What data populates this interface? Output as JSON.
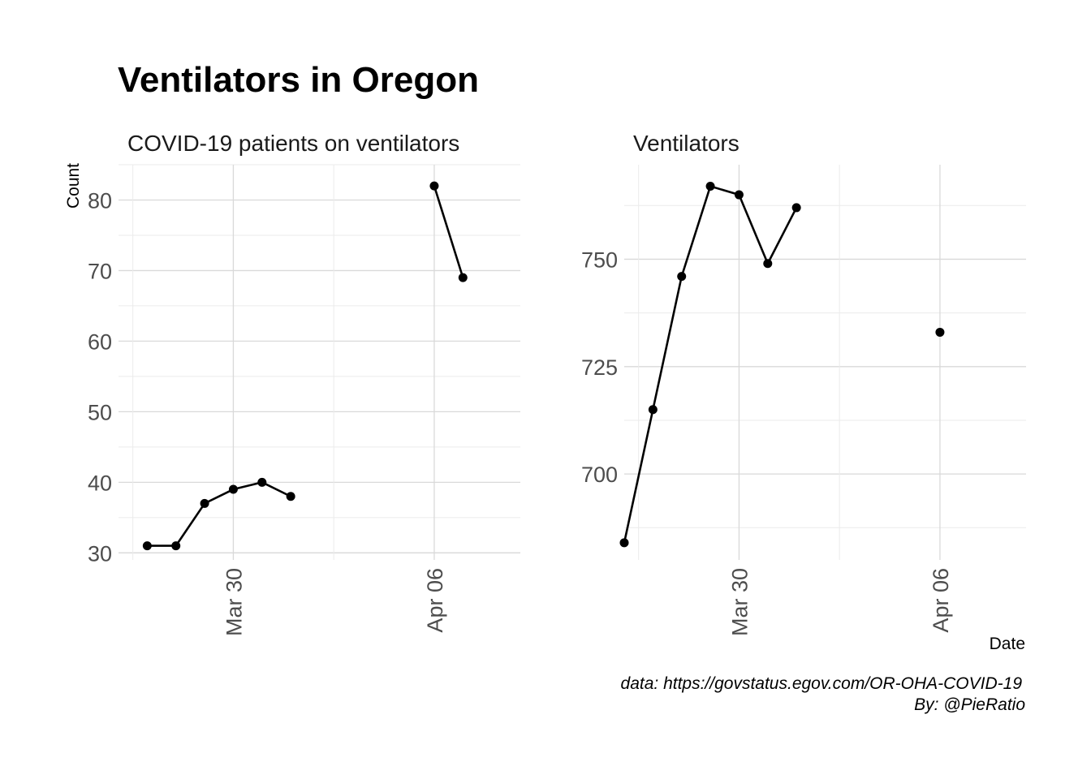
{
  "title": "Ventilators in Oregon",
  "axis": {
    "ylabel": "Count",
    "xlabel": "Date"
  },
  "caption": {
    "line1": "data: https://govstatus.egov.com/OR-OHA-COVID-19",
    "line2": "By: @PieRatio"
  },
  "colors": {
    "series": "#000000",
    "grid": "#d9d9d9"
  },
  "chart_data": [
    {
      "type": "line",
      "title": "COVID-19 patients on ventilators",
      "x_type": "date",
      "xlim": [
        "2020-03-26",
        "2020-04-09"
      ],
      "ylim": [
        29,
        85
      ],
      "x_ticks": [
        {
          "date": "2020-03-30",
          "label": "Mar 30"
        },
        {
          "date": "2020-04-06",
          "label": "Apr 06"
        }
      ],
      "y_ticks": [
        30,
        40,
        50,
        60,
        70,
        80
      ],
      "segments": [
        [
          {
            "x": "2020-03-27",
            "y": 31
          },
          {
            "x": "2020-03-28",
            "y": 31
          },
          {
            "x": "2020-03-29",
            "y": 37
          },
          {
            "x": "2020-03-30",
            "y": 39
          },
          {
            "x": "2020-03-31",
            "y": 40
          },
          {
            "x": "2020-04-01",
            "y": 38
          }
        ],
        [
          {
            "x": "2020-04-06",
            "y": 82
          },
          {
            "x": "2020-04-07",
            "y": 69
          }
        ]
      ],
      "grid": true
    },
    {
      "type": "line",
      "title": "Ventilators",
      "x_type": "date",
      "xlim": [
        "2020-03-26",
        "2020-04-09"
      ],
      "ylim": [
        680,
        772
      ],
      "x_ticks": [
        {
          "date": "2020-03-30",
          "label": "Mar 30"
        },
        {
          "date": "2020-04-06",
          "label": "Apr 06"
        }
      ],
      "y_ticks": [
        700,
        725,
        750
      ],
      "segments": [
        [
          {
            "x": "2020-03-26",
            "y": 684
          },
          {
            "x": "2020-03-27",
            "y": 715
          },
          {
            "x": "2020-03-28",
            "y": 746
          },
          {
            "x": "2020-03-29",
            "y": 767
          },
          {
            "x": "2020-03-30",
            "y": 765
          },
          {
            "x": "2020-03-31",
            "y": 749
          },
          {
            "x": "2020-04-01",
            "y": 762
          }
        ],
        [
          {
            "x": "2020-04-06",
            "y": 733
          }
        ]
      ],
      "grid": true
    }
  ]
}
